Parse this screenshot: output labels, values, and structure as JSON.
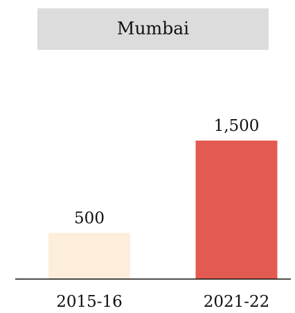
{
  "chart_data": {
    "type": "bar",
    "title": "Mumbai",
    "categories": [
      "2015-16",
      "2021-22"
    ],
    "values": [
      500,
      1500
    ],
    "value_labels": [
      "500",
      "1,500"
    ],
    "colors": [
      "#fdeedb",
      "#e35b50"
    ]
  }
}
